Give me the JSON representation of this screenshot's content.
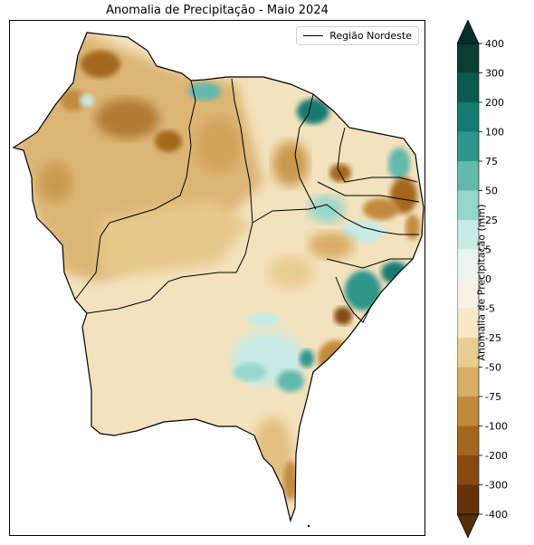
{
  "title": "Anomalia de Precipitação - Maio 2024",
  "legend": {
    "label": "Região Nordeste"
  },
  "colorbar": {
    "label": "Anomalia de Precipitação (mm)",
    "ticks": [
      "400",
      "300",
      "200",
      "100",
      "75",
      "50",
      "25",
      "5",
      "0",
      "-5",
      "-25",
      "-50",
      "-75",
      "-100",
      "-200",
      "-300",
      "-400"
    ],
    "colors": [
      "#0b3d30",
      "#0c5a4f",
      "#127a6f",
      "#2f968a",
      "#64b8ac",
      "#96d6cb",
      "#c8ebe6",
      "#eaf5f2",
      "#f6f2e4",
      "#f5e7c7",
      "#e8cd92",
      "#d8ad65",
      "#c18b3d",
      "#a4671f",
      "#874b12",
      "#653209"
    ],
    "top_color": "#05302a",
    "bottom_color": "#542d0b"
  },
  "map": {
    "land_color": "#ecd29f",
    "border_color": "#000000"
  }
}
